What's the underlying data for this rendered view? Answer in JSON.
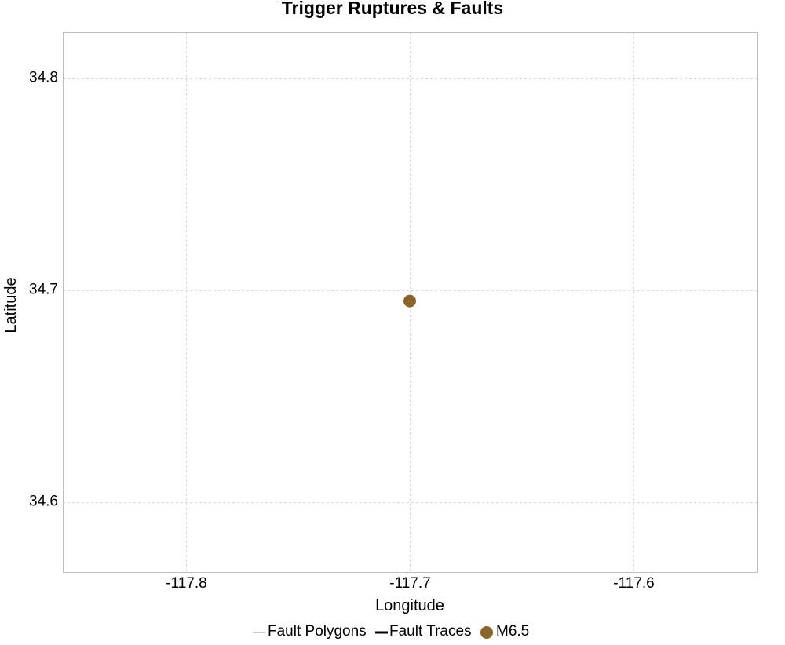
{
  "chart_data": {
    "type": "scatter",
    "title": "Trigger Ruptures & Faults",
    "xlabel": "Longitude",
    "ylabel": "Latitude",
    "xlim": [
      -117.855,
      -117.545
    ],
    "ylim": [
      34.567,
      34.822
    ],
    "x_ticks": [
      -117.8,
      -117.7,
      -117.6
    ],
    "x_tick_labels": [
      "-117.8",
      "-117.7",
      "-117.6"
    ],
    "y_ticks": [
      34.6,
      34.7,
      34.8
    ],
    "y_tick_labels": [
      "34.6",
      "34.7",
      "34.8"
    ],
    "grid": true,
    "legend_position": "bottom",
    "series": [
      {
        "name": "Fault Polygons",
        "kind": "line",
        "color": "#c8c8c8",
        "points": []
      },
      {
        "name": "Fault Traces",
        "kind": "line",
        "color": "#000000",
        "points": []
      },
      {
        "name": "M6.5",
        "kind": "point",
        "color": "#8b6428",
        "points": [
          [
            -117.7,
            34.695
          ]
        ]
      }
    ]
  }
}
